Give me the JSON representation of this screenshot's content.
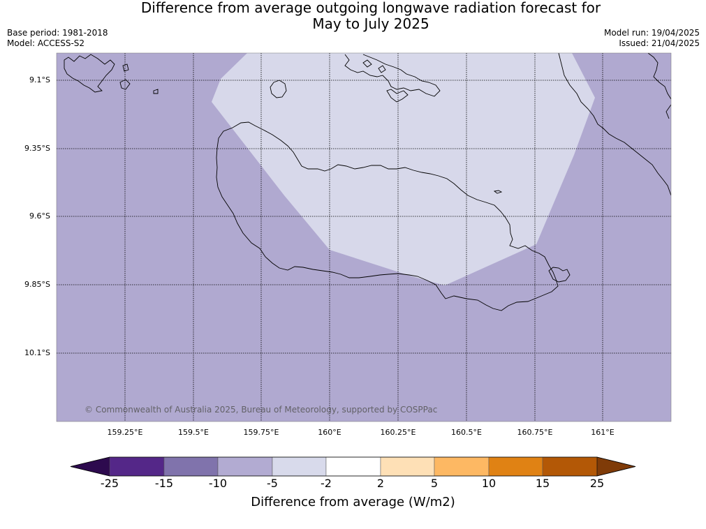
{
  "title_line1": "Difference from average outgoing longwave radiation forecast for",
  "title_line2": "May to July 2025",
  "base_period": "Base period: 1981-2018",
  "model": "Model: ACCESS-S2",
  "model_run": "Model run: 19/04/2025",
  "issued": "Issued: 21/04/2025",
  "copyright": "© Commonwealth of Australia 2025, Bureau of Meteorology, supported by COSPPac",
  "lat_ticks": [
    "9.1°S",
    "9.35°S",
    "9.6°S",
    "9.85°S",
    "10.1°S"
  ],
  "lon_ticks": [
    "159.25°E",
    "159.5°E",
    "159.75°E",
    "160°E",
    "160.25°E",
    "160.5°E",
    "160.75°E",
    "161°E"
  ],
  "colorbar": {
    "title": "Difference from average (W/m2)",
    "labels": [
      "-25",
      "-15",
      "-10",
      "-5",
      "-2",
      "2",
      "5",
      "10",
      "15",
      "25"
    ],
    "colors": [
      "#2d0a4e",
      "#542788",
      "#8073ac",
      "#b2abd2",
      "#d8daeb",
      "#ffffff",
      "#fee0b6",
      "#fdb863",
      "#e08214",
      "#b35806",
      "#7f3b08"
    ]
  },
  "map_colors": {
    "below_minus5": "#b0a9d0",
    "minus5_to_minus2": "#d7d8ea",
    "coast": "#000000"
  }
}
